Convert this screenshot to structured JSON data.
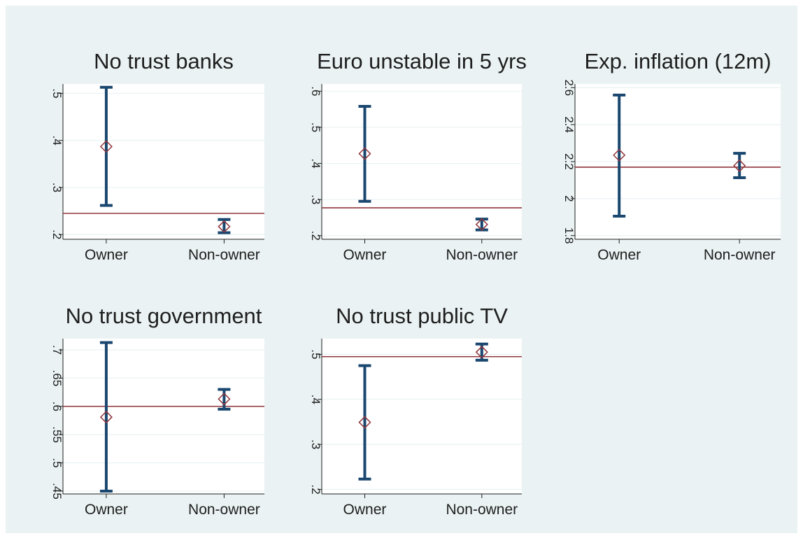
{
  "colors": {
    "background": "#eaf2f3",
    "plot_area": "#ffffff",
    "gridline": "#eaf2f3",
    "ci_bar": "#1a476f",
    "point_marker": "#90353b",
    "reference_line": "#90353b",
    "text": "#1e1e1e"
  },
  "chart_data": [
    {
      "type": "scatter",
      "title": "No trust banks",
      "xlabel": "",
      "ylabel": "",
      "categories": [
        "Owner",
        "Non-owner"
      ],
      "y_ticks": [
        ".2",
        ".3",
        ".4",
        ".5"
      ],
      "ylim": [
        0.19,
        0.52
      ],
      "points": [
        {
          "category": "Owner",
          "mean": 0.387,
          "ci_low": 0.262,
          "ci_high": 0.513
        },
        {
          "category": "Non-owner",
          "mean": 0.217,
          "ci_low": 0.204,
          "ci_high": 0.232
        }
      ],
      "reference_line": 0.245,
      "grid": true,
      "legend": "none"
    },
    {
      "type": "scatter",
      "title": "Euro unstable in 5 yrs",
      "xlabel": "",
      "ylabel": "",
      "categories": [
        "Owner",
        "Non-owner"
      ],
      "y_ticks": [
        ".2",
        ".3",
        ".4",
        ".5",
        ".6"
      ],
      "ylim": [
        0.19,
        0.62
      ],
      "points": [
        {
          "category": "Owner",
          "mean": 0.427,
          "ci_low": 0.295,
          "ci_high": 0.558
        },
        {
          "category": "Non-owner",
          "mean": 0.231,
          "ci_low": 0.216,
          "ci_high": 0.246
        }
      ],
      "reference_line": 0.277,
      "grid": true,
      "legend": "none"
    },
    {
      "type": "scatter",
      "title": "Exp. inflation (12m)",
      "xlabel": "",
      "ylabel": "",
      "categories": [
        "Owner",
        "Non-owner"
      ],
      "y_ticks": [
        "1.8",
        "2",
        "2.2",
        "2.4",
        "2.6"
      ],
      "ylim": [
        1.78,
        2.62
      ],
      "points": [
        {
          "category": "Owner",
          "mean": 2.235,
          "ci_low": 1.905,
          "ci_high": 2.56
        },
        {
          "category": "Non-owner",
          "mean": 2.178,
          "ci_low": 2.113,
          "ci_high": 2.245
        }
      ],
      "reference_line": 2.17,
      "grid": true,
      "legend": "none"
    },
    {
      "type": "scatter",
      "title": "No trust government",
      "xlabel": "",
      "ylabel": "",
      "categories": [
        "Owner",
        "Non-owner"
      ],
      "y_ticks": [
        ".45",
        ".5",
        ".55",
        ".6",
        ".65",
        ".7"
      ],
      "ylim": [
        0.445,
        0.72
      ],
      "points": [
        {
          "category": "Owner",
          "mean": 0.581,
          "ci_low": 0.45,
          "ci_high": 0.713
        },
        {
          "category": "Non-owner",
          "mean": 0.613,
          "ci_low": 0.595,
          "ci_high": 0.63
        }
      ],
      "reference_line": 0.6,
      "grid": true,
      "legend": "none"
    },
    {
      "type": "scatter",
      "title": "No trust public TV",
      "xlabel": "",
      "ylabel": "",
      "categories": [
        "Owner",
        "Non-owner"
      ],
      "y_ticks": [
        ".2",
        ".3",
        ".4",
        ".5"
      ],
      "ylim": [
        0.19,
        0.535
      ],
      "points": [
        {
          "category": "Owner",
          "mean": 0.349,
          "ci_low": 0.223,
          "ci_high": 0.475
        },
        {
          "category": "Non-owner",
          "mean": 0.505,
          "ci_low": 0.487,
          "ci_high": 0.523
        }
      ],
      "reference_line": 0.495,
      "grid": true,
      "legend": "none"
    }
  ]
}
